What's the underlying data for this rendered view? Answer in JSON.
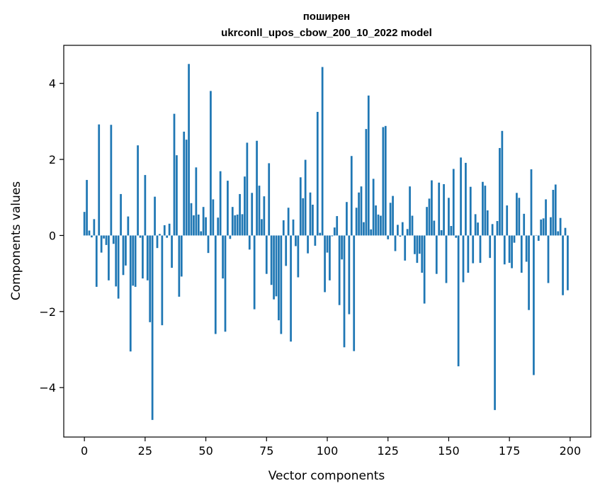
{
  "chart_data": {
    "type": "bar",
    "title": "поширен",
    "subtitle": "ukrconll_upos_cbow_200_10_2022 model",
    "xlabel": "Vector components",
    "ylabel": "Components values",
    "xlim": [
      -8.5,
      208.5
    ],
    "ylim": [
      -5.3,
      5.0
    ],
    "xticks": [
      0,
      25,
      50,
      75,
      100,
      125,
      150,
      175,
      200
    ],
    "xtick_labels": [
      "0",
      "25",
      "50",
      "75",
      "100",
      "125",
      "150",
      "175",
      "200"
    ],
    "yticks": [
      -4,
      -2,
      0,
      2,
      4
    ],
    "ytick_labels": [
      "−4",
      "−2",
      "0",
      "2",
      "4"
    ],
    "grid": false,
    "bar_color": "#1f77b4",
    "x": [
      0,
      1,
      2,
      3,
      4,
      5,
      6,
      7,
      8,
      9,
      10,
      11,
      12,
      13,
      14,
      15,
      16,
      17,
      18,
      19,
      20,
      21,
      22,
      23,
      24,
      25,
      26,
      27,
      28,
      29,
      30,
      31,
      32,
      33,
      34,
      35,
      36,
      37,
      38,
      39,
      40,
      41,
      42,
      43,
      44,
      45,
      46,
      47,
      48,
      49,
      50,
      51,
      52,
      53,
      54,
      55,
      56,
      57,
      58,
      59,
      60,
      61,
      62,
      63,
      64,
      65,
      66,
      67,
      68,
      69,
      70,
      71,
      72,
      73,
      74,
      75,
      76,
      77,
      78,
      79,
      80,
      81,
      82,
      83,
      84,
      85,
      86,
      87,
      88,
      89,
      90,
      91,
      92,
      93,
      94,
      95,
      96,
      97,
      98,
      99,
      100,
      101,
      102,
      103,
      104,
      105,
      106,
      107,
      108,
      109,
      110,
      111,
      112,
      113,
      114,
      115,
      116,
      117,
      118,
      119,
      120,
      121,
      122,
      123,
      124,
      125,
      126,
      127,
      128,
      129,
      130,
      131,
      132,
      133,
      134,
      135,
      136,
      137,
      138,
      139,
      140,
      141,
      142,
      143,
      144,
      145,
      146,
      147,
      148,
      149,
      150,
      151,
      152,
      153,
      154,
      155,
      156,
      157,
      158,
      159,
      160,
      161,
      162,
      163,
      164,
      165,
      166,
      167,
      168,
      169,
      170,
      171,
      172,
      173,
      174,
      175,
      176,
      177,
      178,
      179,
      180,
      181,
      182,
      183,
      184,
      185,
      186,
      187,
      188,
      189,
      190,
      191,
      192,
      193,
      194,
      195,
      196,
      197,
      198,
      199
    ],
    "values": [
      0.62,
      1.46,
      0.13,
      -0.05,
      0.43,
      -1.35,
      2.92,
      -0.45,
      -0.08,
      -0.25,
      -1.18,
      2.91,
      -0.22,
      -1.34,
      -1.66,
      1.09,
      -1.04,
      -0.79,
      0.5,
      -3.05,
      -1.32,
      -1.35,
      2.37,
      -0.06,
      -1.13,
      1.59,
      -1.18,
      -2.28,
      -4.85,
      1.02,
      -0.33,
      0.04,
      -2.36,
      0.27,
      -0.06,
      0.31,
      -0.85,
      3.2,
      2.11,
      -1.61,
      -1.08,
      2.73,
      2.52,
      4.51,
      0.85,
      0.53,
      1.79,
      0.55,
      0.11,
      0.75,
      0.48,
      -0.46,
      3.8,
      0.95,
      -2.59,
      0.47,
      1.69,
      -1.13,
      -2.53,
      1.44,
      -0.09,
      0.75,
      0.53,
      0.55,
      1.09,
      0.56,
      1.55,
      2.44,
      -0.37,
      1.12,
      -1.94,
      2.49,
      1.31,
      0.43,
      1.03,
      -1.01,
      1.9,
      -1.3,
      -1.68,
      -1.6,
      -2.23,
      -2.59,
      0.4,
      -0.8,
      0.73,
      -2.79,
      0.42,
      -0.28,
      -1.1,
      1.53,
      0.98,
      1.99,
      -0.47,
      1.13,
      0.81,
      -0.27,
      3.25,
      0.07,
      4.43,
      -1.49,
      -0.45,
      -1.18,
      -0.02,
      0.21,
      0.51,
      -1.83,
      -0.63,
      -2.94,
      0.88,
      -2.07,
      2.09,
      -3.04,
      0.73,
      1.13,
      1.29,
      0.35,
      2.8,
      3.68,
      0.16,
      1.49,
      0.79,
      0.55,
      0.52,
      2.85,
      2.88,
      -0.1,
      0.86,
      1.04,
      -0.41,
      0.28,
      -0.03,
      0.35,
      -0.66,
      0.17,
      1.29,
      0.52,
      -0.49,
      -0.72,
      -0.48,
      -0.98,
      -1.79,
      0.75,
      0.97,
      1.45,
      0.39,
      -1.01,
      1.39,
      0.14,
      1.35,
      -1.25,
      0.99,
      0.25,
      1.75,
      -0.06,
      -3.44,
      2.05,
      -1.23,
      1.91,
      -0.98,
      1.28,
      -0.73,
      0.56,
      0.34,
      -0.72,
      1.41,
      1.31,
      0.66,
      -0.59,
      0.3,
      -4.59,
      0.38,
      2.3,
      2.75,
      -0.76,
      0.79,
      -0.72,
      -0.86,
      -0.19,
      1.12,
      0.99,
      -0.98,
      0.57,
      -0.69,
      -1.96,
      1.74,
      -3.67,
      0.01,
      -0.14,
      0.42,
      0.45,
      0.95,
      -1.25,
      0.48,
      1.2,
      1.34,
      0.11,
      0.46,
      -1.57,
      0.2,
      -1.44
    ]
  }
}
